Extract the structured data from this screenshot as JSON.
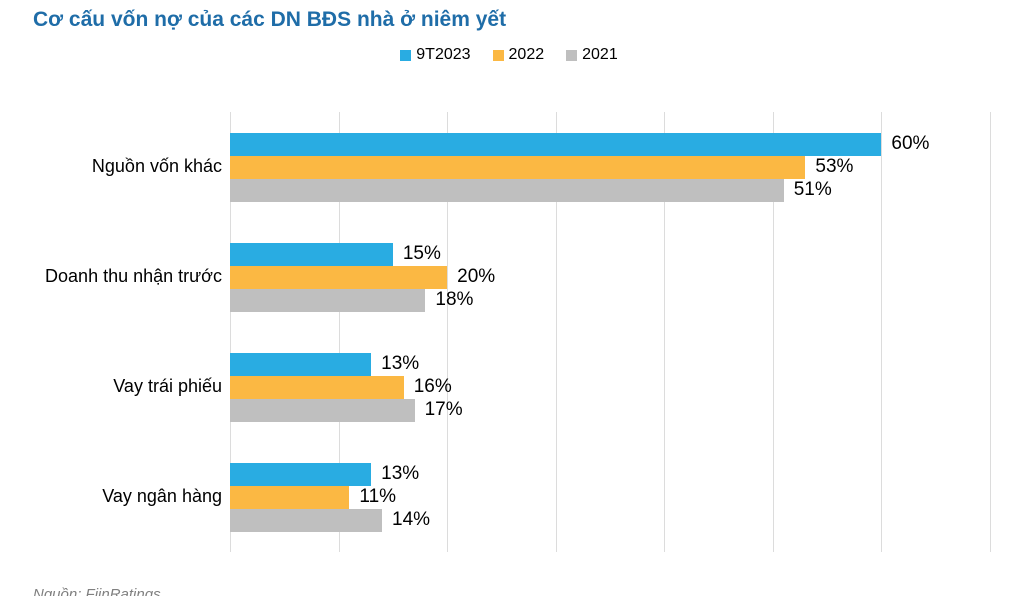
{
  "title": "Cơ cấu vốn nợ của các DN BĐS nhà ở niêm yết",
  "source": "Nguồn: FiinRatings",
  "colors": {
    "title": "#1F6DA8",
    "blue": "#29ACE2",
    "yellow": "#FBB843",
    "gray": "#BFBFBF",
    "grid": "#DCDCDC",
    "source": "#808080"
  },
  "legend": {
    "items": [
      {
        "label": "9T2023",
        "color": "#29ACE2"
      },
      {
        "label": "2022",
        "color": "#FBB843"
      },
      {
        "label": "2021",
        "color": "#BFBFBF"
      }
    ]
  },
  "chart_data": {
    "type": "bar",
    "orientation": "horizontal",
    "title": "Cơ cấu vốn nợ của các DN BĐS nhà ở niêm yết",
    "categories": [
      "Nguồn vốn khác",
      "Doanh thu nhận trước",
      "Vay trái phiếu",
      "Vay ngân hàng"
    ],
    "series": [
      {
        "name": "9T2023",
        "color": "#29ACE2",
        "values": [
          60,
          15,
          13,
          13
        ]
      },
      {
        "name": "2022",
        "color": "#FBB843",
        "values": [
          53,
          20,
          16,
          11
        ]
      },
      {
        "name": "2021",
        "color": "#BFBFBF",
        "values": [
          51,
          18,
          17,
          14
        ]
      }
    ],
    "value_suffix": "%",
    "xlim": [
      0,
      70
    ],
    "gridline_step": 10,
    "grid": true,
    "legend_position": "top",
    "data_labels": true
  }
}
